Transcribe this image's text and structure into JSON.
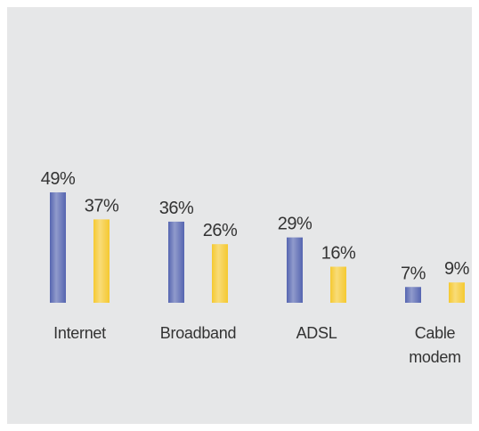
{
  "chart_data": {
    "type": "bar",
    "categories": [
      "Internet",
      "Broadband",
      "ADSL",
      "Cable modem"
    ],
    "series": [
      {
        "color": "#5565b0",
        "values": [
          49,
          36,
          29,
          7
        ],
        "value_labels": [
          "49%",
          "36%",
          "29%",
          "7%"
        ]
      },
      {
        "color": "#f5c930",
        "values": [
          37,
          26,
          16,
          9
        ],
        "value_labels": [
          "37%",
          "26%",
          "16%",
          "9%"
        ]
      }
    ],
    "ylim": [
      0,
      50
    ]
  }
}
